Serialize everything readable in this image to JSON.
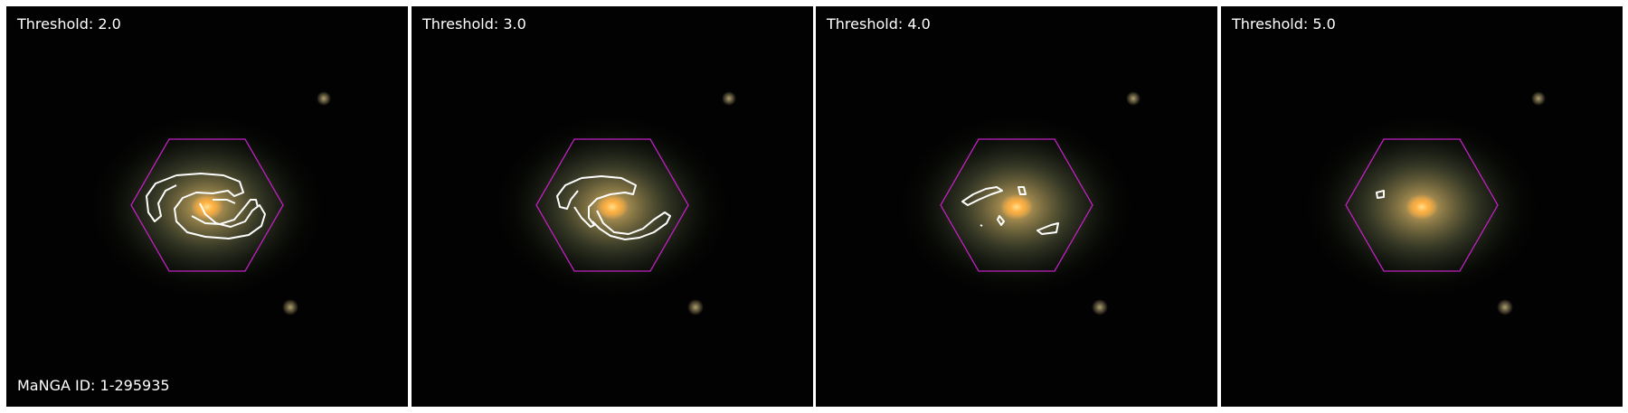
{
  "panels": [
    {
      "label": "Threshold: 2.0",
      "arm_level": 2
    },
    {
      "label": "Threshold: 3.0",
      "arm_level": 3
    },
    {
      "label": "Threshold: 4.0",
      "arm_level": 4
    },
    {
      "label": "Threshold: 5.0",
      "arm_level": 5
    }
  ],
  "manga_id_label": "MaNGA ID: 1-295935",
  "colors": {
    "hexagon": "#c020c0",
    "contour": "#ffffff",
    "background": "#020202",
    "galaxy_core": "#ffb040",
    "galaxy_halo": "#9a9a60"
  }
}
